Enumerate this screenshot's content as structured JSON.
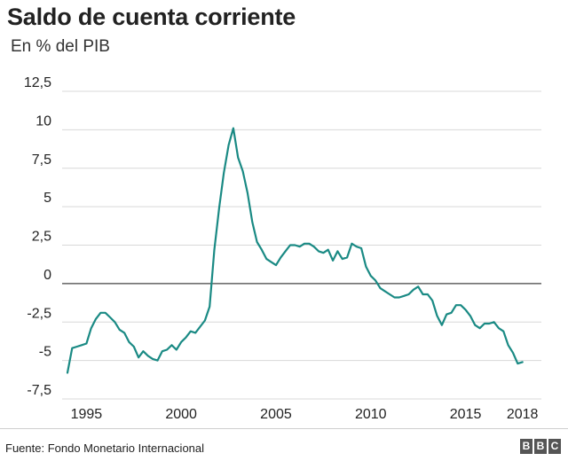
{
  "header": {
    "title": "Saldo de cuenta corriente",
    "subtitle": "En % del PIB"
  },
  "footer": {
    "source": "Fuente: Fondo Monetario Internacional",
    "logo_letters": [
      "B",
      "B",
      "C"
    ]
  },
  "colors": {
    "line": "#1a8a84",
    "grid": "#d8d8d8"
  },
  "chart_data": {
    "type": "line",
    "title": "Saldo de cuenta corriente",
    "subtitle": "En % del PIB",
    "ylim": [
      -7.5,
      12.5
    ],
    "yticks": [
      12.5,
      10,
      7.5,
      5,
      2.5,
      0,
      -2.5,
      -5,
      -7.5
    ],
    "ytick_labels": [
      "12,5",
      "10",
      "7,5",
      "5",
      "2,5",
      "0",
      "-2,5",
      "-5",
      "-7,5"
    ],
    "xlim": [
      1994,
      2018.25
    ],
    "xticks": [
      1995,
      2000,
      2005,
      2010,
      2015,
      2018
    ],
    "xtick_labels": [
      "1995",
      "2000",
      "2005",
      "2010",
      "2015",
      "2018"
    ],
    "grid": true,
    "series": [
      {
        "x": [
          1994.0,
          1994.25,
          1994.5,
          1994.75,
          1995.0,
          1995.25,
          1995.5,
          1995.75,
          1996.0,
          1996.25,
          1996.5,
          1996.75,
          1997.0,
          1997.25,
          1997.5,
          1997.75,
          1998.0,
          1998.25,
          1998.5,
          1998.75,
          1999.0,
          1999.25,
          1999.5,
          1999.75,
          2000.0,
          2000.25,
          2000.5,
          2000.75,
          2001.0,
          2001.25,
          2001.5,
          2001.75,
          2002.0,
          2002.25,
          2002.5,
          2002.75,
          2003.0,
          2003.25,
          2003.5,
          2003.75,
          2004.0,
          2004.25,
          2004.5,
          2004.75,
          2005.0,
          2005.25,
          2005.5,
          2005.75,
          2006.0,
          2006.25,
          2006.5,
          2006.75,
          2007.0,
          2007.25,
          2007.5,
          2007.75,
          2008.0,
          2008.25,
          2008.5,
          2008.75,
          2009.0,
          2009.25,
          2009.5,
          2009.75,
          2010.0,
          2010.25,
          2010.5,
          2010.75,
          2011.0,
          2011.25,
          2011.5,
          2011.75,
          2012.0,
          2012.25,
          2012.5,
          2012.75,
          2013.0,
          2013.25,
          2013.5,
          2013.75,
          2014.0,
          2014.25,
          2014.5,
          2014.75,
          2015.0,
          2015.25,
          2015.5,
          2015.75,
          2016.0,
          2016.25,
          2016.5,
          2016.75,
          2017.0,
          2017.25,
          2017.5,
          2017.75,
          2018.0
        ],
        "values": [
          -5.8,
          -4.2,
          -4.1,
          -4.0,
          -3.9,
          -2.9,
          -2.3,
          -1.9,
          -1.9,
          -2.2,
          -2.5,
          -3.0,
          -3.2,
          -3.8,
          -4.1,
          -4.8,
          -4.4,
          -4.7,
          -4.9,
          -5.0,
          -4.4,
          -4.3,
          -4.0,
          -4.3,
          -3.8,
          -3.5,
          -3.1,
          -3.2,
          -2.8,
          -2.4,
          -1.5,
          2.2,
          4.9,
          7.2,
          9.0,
          10.1,
          8.2,
          7.3,
          5.9,
          4.0,
          2.7,
          2.2,
          1.6,
          1.4,
          1.2,
          1.7,
          2.1,
          2.5,
          2.5,
          2.4,
          2.6,
          2.6,
          2.4,
          2.1,
          2.0,
          2.2,
          1.5,
          2.1,
          1.6,
          1.7,
          2.6,
          2.4,
          2.3,
          1.1,
          0.5,
          0.2,
          -0.3,
          -0.5,
          -0.7,
          -0.9,
          -0.9,
          -0.8,
          -0.7,
          -0.4,
          -0.2,
          -0.7,
          -0.7,
          -1.1,
          -2.1,
          -2.7,
          -2.0,
          -1.9,
          -1.4,
          -1.4,
          -1.7,
          -2.1,
          -2.7,
          -2.9,
          -2.6,
          -2.6,
          -2.5,
          -2.9,
          -3.1,
          -4.0,
          -4.5,
          -5.2,
          -5.1
        ]
      }
    ]
  }
}
